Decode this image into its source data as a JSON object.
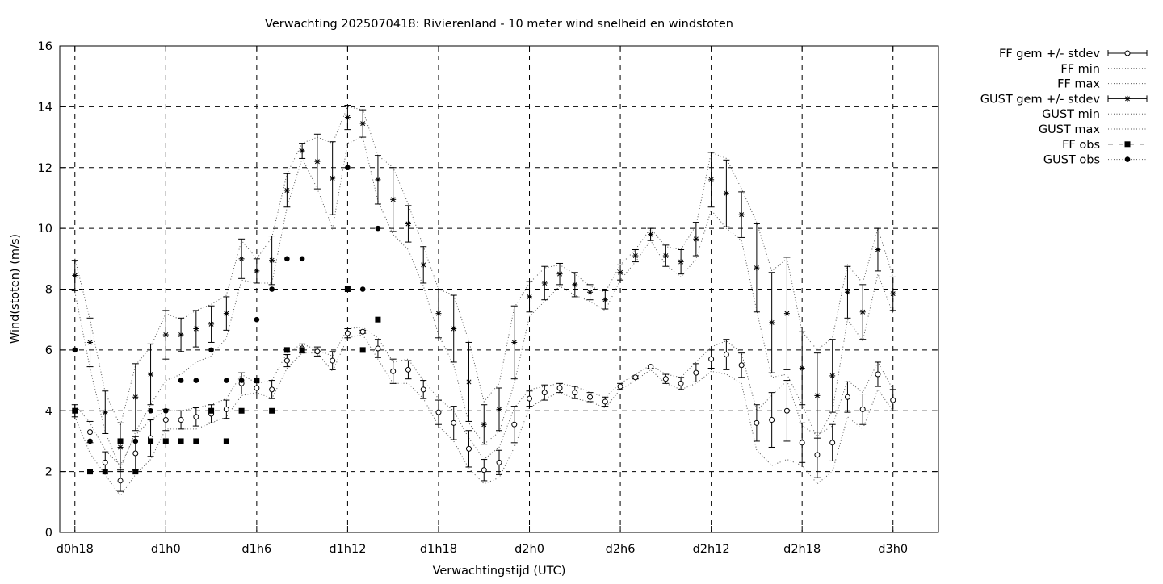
{
  "chart_data": {
    "type": "scatter",
    "title": "Verwachting 2025070418: Rivierenland - 10 meter wind snelheid en windstoten",
    "xlabel": "Verwachtingstijd (UTC)",
    "ylabel": "Wind(stoten) (m/s)",
    "xlim": [
      -1,
      57
    ],
    "ylim": [
      0,
      16
    ],
    "grid": true,
    "legend_position": "outside-right",
    "yticks": [
      0,
      2,
      4,
      6,
      8,
      10,
      12,
      14,
      16
    ],
    "xticks": [
      {
        "x": 0,
        "label": "d0h18"
      },
      {
        "x": 6,
        "label": "d1h0"
      },
      {
        "x": 12,
        "label": "d1h6"
      },
      {
        "x": 18,
        "label": "d1h12"
      },
      {
        "x": 24,
        "label": "d1h18"
      },
      {
        "x": 30,
        "label": "d2h0"
      },
      {
        "x": 36,
        "label": "d2h6"
      },
      {
        "x": 42,
        "label": "d2h12"
      },
      {
        "x": 48,
        "label": "d2h18"
      },
      {
        "x": 54,
        "label": "d3h0"
      }
    ],
    "x": [
      0,
      1,
      2,
      3,
      4,
      5,
      6,
      7,
      8,
      9,
      10,
      11,
      12,
      13,
      14,
      15,
      16,
      17,
      18,
      19,
      20,
      21,
      22,
      23,
      24,
      25,
      26,
      27,
      28,
      29,
      30,
      31,
      32,
      33,
      34,
      35,
      36,
      37,
      38,
      39,
      40,
      41,
      42,
      43,
      44,
      45,
      46,
      47,
      48,
      49,
      50,
      51,
      52,
      53,
      54
    ],
    "series": [
      {
        "name": "FF gem +/- stdev",
        "style": "errorbar-circle",
        "values": [
          4.0,
          3.3,
          2.3,
          1.7,
          2.6,
          3.1,
          3.7,
          3.7,
          3.8,
          3.9,
          4.05,
          4.9,
          4.75,
          4.7,
          5.65,
          6.05,
          5.95,
          5.65,
          6.55,
          6.6,
          6.05,
          5.3,
          5.35,
          4.7,
          3.95,
          3.6,
          2.75,
          2.05,
          2.3,
          3.55,
          4.4,
          4.6,
          4.75,
          4.6,
          4.45,
          4.3,
          4.8,
          5.1,
          5.45,
          5.05,
          4.9,
          5.25,
          5.7,
          5.85,
          5.5,
          3.6,
          3.7,
          4.0,
          2.95,
          2.55,
          2.95,
          4.45,
          4.05,
          5.2,
          4.35
        ],
        "stdev": [
          0.2,
          0.35,
          0.35,
          0.35,
          0.55,
          0.6,
          0.35,
          0.3,
          0.3,
          0.3,
          0.3,
          0.35,
          0.2,
          0.3,
          0.2,
          0.15,
          0.15,
          0.3,
          0.15,
          0.05,
          0.3,
          0.4,
          0.3,
          0.3,
          0.4,
          0.55,
          0.6,
          0.35,
          0.4,
          0.6,
          0.25,
          0.25,
          0.15,
          0.2,
          0.15,
          0.15,
          0.1,
          0.05,
          0.05,
          0.15,
          0.2,
          0.3,
          0.3,
          0.5,
          0.4,
          0.6,
          0.9,
          1.0,
          0.65,
          0.75,
          0.6,
          0.5,
          0.5,
          0.4,
          0.35
        ]
      },
      {
        "name": "FF min",
        "style": "dotted",
        "values": [
          3.8,
          2.6,
          1.9,
          1.2,
          1.9,
          2.4,
          3.4,
          3.4,
          3.4,
          3.6,
          3.8,
          4.5,
          4.6,
          4.4,
          5.4,
          5.9,
          5.9,
          5.3,
          6.4,
          6.5,
          5.7,
          4.9,
          4.9,
          4.4,
          3.5,
          3.0,
          2.1,
          1.6,
          1.8,
          2.8,
          4.1,
          4.4,
          4.6,
          4.4,
          4.3,
          4.1,
          4.7,
          5.0,
          5.35,
          4.9,
          4.7,
          4.9,
          5.3,
          5.2,
          4.9,
          2.7,
          2.2,
          2.4,
          2.2,
          1.6,
          2.0,
          3.8,
          3.4,
          4.7,
          4.0
        ]
      },
      {
        "name": "FF max",
        "style": "dotted",
        "values": [
          4.2,
          3.6,
          2.7,
          2.2,
          3.2,
          3.7,
          4.0,
          4.0,
          4.1,
          4.2,
          4.4,
          5.2,
          4.9,
          5.0,
          5.9,
          6.2,
          6.0,
          5.8,
          6.7,
          6.75,
          6.4,
          5.6,
          5.7,
          5.0,
          4.4,
          4.0,
          3.1,
          2.4,
          2.8,
          4.1,
          4.7,
          4.8,
          4.9,
          4.8,
          4.6,
          4.45,
          4.9,
          5.2,
          5.5,
          5.2,
          5.1,
          5.6,
          6.1,
          6.3,
          5.9,
          4.0,
          4.5,
          5.0,
          3.5,
          3.2,
          3.5,
          5.0,
          4.6,
          5.6,
          4.7
        ]
      },
      {
        "name": "GUST gem +/- stdev",
        "style": "errorbar-star",
        "values": [
          8.45,
          6.25,
          3.95,
          2.8,
          4.45,
          5.2,
          6.5,
          6.5,
          6.7,
          6.85,
          7.2,
          9.0,
          8.6,
          8.95,
          11.25,
          12.55,
          12.2,
          11.65,
          13.65,
          13.45,
          11.6,
          10.95,
          10.15,
          8.8,
          7.2,
          6.7,
          4.95,
          3.55,
          4.05,
          6.25,
          7.75,
          8.2,
          8.5,
          8.15,
          7.9,
          7.65,
          8.55,
          9.1,
          9.8,
          9.1,
          8.9,
          9.65,
          11.6,
          11.15,
          10.45,
          8.7,
          6.9,
          7.2,
          5.4,
          4.5,
          5.15,
          7.9,
          7.25,
          9.3,
          7.85
        ],
        "stdev": [
          0.5,
          0.8,
          0.7,
          0.8,
          1.1,
          1.0,
          0.8,
          0.55,
          0.6,
          0.6,
          0.55,
          0.65,
          0.4,
          0.8,
          0.55,
          0.25,
          0.9,
          1.2,
          0.4,
          0.45,
          0.8,
          1.05,
          0.6,
          0.6,
          0.8,
          1.1,
          1.3,
          0.65,
          0.7,
          1.2,
          0.5,
          0.55,
          0.35,
          0.4,
          0.25,
          0.3,
          0.25,
          0.2,
          0.2,
          0.35,
          0.4,
          0.55,
          0.9,
          1.1,
          0.75,
          1.45,
          1.65,
          1.85,
          1.2,
          1.4,
          1.2,
          0.85,
          0.9,
          0.7,
          0.55
        ]
      },
      {
        "name": "GUST min",
        "style": "dotted",
        "values": [
          7.9,
          5.4,
          3.3,
          2.1,
          3.3,
          4.2,
          5.0,
          5.2,
          5.6,
          5.8,
          6.4,
          8.3,
          8.2,
          8.2,
          10.7,
          12.3,
          11.3,
          10.0,
          12.8,
          13.0,
          10.9,
          9.8,
          9.3,
          8.1,
          6.5,
          5.5,
          3.6,
          2.9,
          3.3,
          4.9,
          7.1,
          7.6,
          8.1,
          7.8,
          7.6,
          7.3,
          8.3,
          8.9,
          9.6,
          8.8,
          8.4,
          9.0,
          10.6,
          10.0,
          9.6,
          7.3,
          5.1,
          5.2,
          4.2,
          3.1,
          4.0,
          7.0,
          6.3,
          8.5,
          7.2
        ]
      },
      {
        "name": "GUST max",
        "style": "dotted",
        "values": [
          9.0,
          7.0,
          4.6,
          3.5,
          5.5,
          6.1,
          7.2,
          7.0,
          7.3,
          7.5,
          7.8,
          9.6,
          9.0,
          9.7,
          11.8,
          12.8,
          13.0,
          12.8,
          14.0,
          13.9,
          12.4,
          12.0,
          10.8,
          9.4,
          8.0,
          7.8,
          6.3,
          4.3,
          4.9,
          7.4,
          8.2,
          8.7,
          8.8,
          8.5,
          8.1,
          7.9,
          8.8,
          9.3,
          10.0,
          9.4,
          9.3,
          10.1,
          12.5,
          12.3,
          11.3,
          10.2,
          8.6,
          9.0,
          6.6,
          6.0,
          6.4,
          8.8,
          8.2,
          10.0,
          8.4
        ]
      },
      {
        "name": "FF obs",
        "style": "square",
        "x": [
          0,
          1,
          2,
          3,
          4,
          5,
          6,
          7,
          8,
          9,
          10,
          11,
          12,
          13,
          14,
          15,
          18,
          19,
          20
        ],
        "values": [
          4,
          2,
          2,
          3,
          2,
          3,
          3,
          3,
          3,
          4,
          3,
          4,
          5,
          4,
          6,
          6,
          8,
          6,
          7
        ]
      },
      {
        "name": "GUST obs",
        "style": "dot",
        "x": [
          0,
          1,
          3,
          4,
          5,
          6,
          7,
          8,
          9,
          10,
          11,
          12,
          13,
          14,
          15,
          18,
          19,
          20
        ],
        "values": [
          6,
          3,
          3,
          3,
          4,
          4,
          5,
          5,
          6,
          5,
          5,
          7,
          8,
          9,
          9,
          12,
          8,
          10
        ]
      }
    ]
  }
}
